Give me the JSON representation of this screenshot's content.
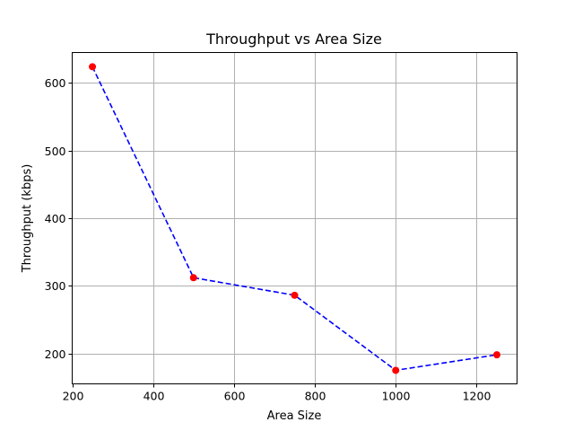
{
  "chart_data": {
    "type": "line",
    "title": "Throughput vs Area Size",
    "xlabel": "Area Size",
    "ylabel": "Throughput (kbps)",
    "xlim": [
      200,
      1300
    ],
    "ylim": [
      155,
      645
    ],
    "xticks": [
      200,
      400,
      600,
      800,
      1000,
      1200
    ],
    "yticks": [
      200,
      300,
      400,
      500,
      600
    ],
    "grid": true,
    "series": [
      {
        "x": [
          250,
          500,
          750,
          1000,
          1250
        ],
        "y": [
          624,
          312,
          286,
          175,
          198
        ],
        "line_color": "#0000ff",
        "line_style": "dashed",
        "marker_color": "#ff0000",
        "marker": "circle"
      }
    ]
  }
}
